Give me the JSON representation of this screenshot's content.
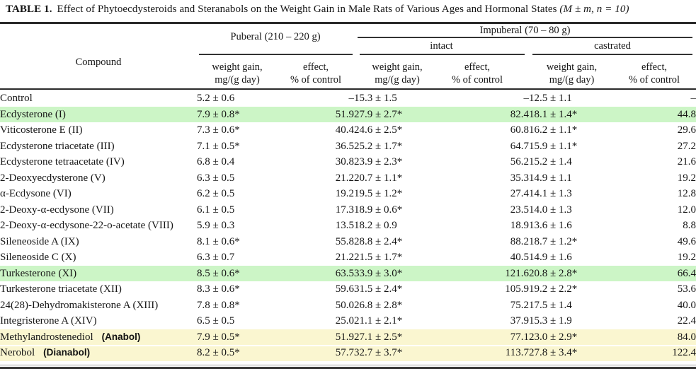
{
  "title": {
    "label": "TABLE 1.",
    "text": "Effect of Phytoecdysteroids and Steranabols on the Weight Gain in Male Rats of Various Ages and Hormonal States",
    "stats": "(M ± m, n = 10)"
  },
  "header": {
    "compound": "Compound",
    "puberal": "Puberal (210 – 220 g)",
    "impuberal": "Impuberal (70 – 80 g)",
    "intact": "intact",
    "castrated": "castrated",
    "weight_line1": "weight gain,",
    "weight_line2": "mg/(g day)",
    "effect_line1": "effect,",
    "effect_line2": "% of control"
  },
  "colors": {
    "highlight_green": "#ccf5c6",
    "highlight_yellow": "#faf6d0",
    "rule": "#2a2a2a"
  },
  "rows": [
    {
      "compound": "Control",
      "annotation": null,
      "highlight": null,
      "values": [
        "5.2 ± 0.6",
        "–",
        "15.3 ± 1.5",
        "–",
        "12.5 ± 1.1",
        "–"
      ]
    },
    {
      "compound": "Ecdysterone (I)",
      "annotation": null,
      "highlight": "green",
      "values": [
        "7.9 ± 0.8*",
        "51.9",
        "27.9 ± 2.7*",
        "82.4",
        "18.1 ± 1.4*",
        "44.8"
      ]
    },
    {
      "compound": "Viticosterone E (II)",
      "annotation": null,
      "highlight": null,
      "values": [
        "7.3 ± 0.6*",
        "40.4",
        "24.6 ± 2.5*",
        "60.8",
        "16.2 ± 1.1*",
        "29.6"
      ]
    },
    {
      "compound": "Ecdysterone triacetate (III)",
      "annotation": null,
      "highlight": null,
      "values": [
        "7.1 ± 0.5*",
        "36.5",
        "25.2 ± 1.7*",
        "64.7",
        "15.9 ± 1.1*",
        "27.2"
      ]
    },
    {
      "compound": "Ecdysterone tetraacetate (IV)",
      "annotation": null,
      "highlight": null,
      "values": [
        "6.8 ± 0.4",
        "30.8",
        "23.9 ± 2.3*",
        "56.2",
        "15.2 ± 1.4",
        "21.6"
      ]
    },
    {
      "compound": "2-Deoxyecdysterone (V)",
      "annotation": null,
      "highlight": null,
      "values": [
        "6.3 ± 0.5",
        "21.2",
        "20.7 ± 1.1*",
        "35.3",
        "14.9 ± 1.1",
        "19.2"
      ]
    },
    {
      "compound": "α-Ecdysone (VI)",
      "annotation": null,
      "highlight": null,
      "values": [
        "6.2 ± 0.5",
        "19.2",
        "19.5 ± 1.2*",
        "27.4",
        "14.1 ± 1.3",
        "12.8"
      ]
    },
    {
      "compound": "2-Deoxy-α-ecdysone (VII)",
      "annotation": null,
      "highlight": null,
      "values": [
        "6.1 ± 0.5",
        "17.3",
        "18.9 ± 0.6*",
        "23.5",
        "14.0 ± 1.3",
        "12.0"
      ]
    },
    {
      "compound": "2-Deoxy-α-ecdysone-22-o-acetate (VIII)",
      "annotation": null,
      "highlight": null,
      "values": [
        "5.9 ± 0.3",
        "13.5",
        "18.2 ± 0.9",
        "18.9",
        "13.6 ± 1.6",
        "8.8"
      ]
    },
    {
      "compound": "Sileneoside A (IX)",
      "annotation": null,
      "highlight": null,
      "values": [
        "8.1 ± 0.6*",
        "55.8",
        "28.8 ± 2.4*",
        "88.2",
        "18.7 ± 1.2*",
        "49.6"
      ]
    },
    {
      "compound": "Sileneoside C (X)",
      "annotation": null,
      "highlight": null,
      "values": [
        "6.3 ± 0.7",
        "21.2",
        "21.5 ± 1.7*",
        "40.5",
        "14.9 ± 1.6",
        "19.2"
      ]
    },
    {
      "compound": "Turkesterone (XI)",
      "annotation": null,
      "highlight": "green",
      "values": [
        "8.5 ± 0.6*",
        "63.5",
        "33.9 ± 3.0*",
        "121.6",
        "20.8 ± 2.8*",
        "66.4"
      ]
    },
    {
      "compound": "Turkesterone triacetate (XII)",
      "annotation": null,
      "highlight": null,
      "values": [
        "8.3 ± 0.6*",
        "59.6",
        "31.5 ± 2.4*",
        "105.9",
        "19.2 ± 2.2*",
        "53.6"
      ]
    },
    {
      "compound": "24(28)-Dehydromakisterone A (XIII)",
      "annotation": null,
      "highlight": null,
      "values": [
        "7.8 ± 0.8*",
        "50.0",
        "26.8 ± 2.8*",
        "75.2",
        "17.5 ± 1.4",
        "40.0"
      ]
    },
    {
      "compound": "Integristerone A (XIV)",
      "annotation": null,
      "highlight": null,
      "values": [
        "6.5 ± 0.5",
        "25.0",
        "21.1 ± 2.1*",
        "37.9",
        "15.3 ± 1.9",
        "22.4"
      ]
    },
    {
      "compound": "Methylandrostenediol",
      "annotation": "(Anabol)",
      "highlight": "yellow",
      "values": [
        "7.9 ± 0.5*",
        "51.9",
        "27.1 ± 2.5*",
        "77.1",
        "23.0 ± 2.9*",
        "84.0"
      ]
    },
    {
      "compound": "Nerobol",
      "annotation": "(Dianabol)",
      "highlight": "yellow",
      "values": [
        "8.2 ± 0.5*",
        "57.7",
        "32.7 ± 3.7*",
        "113.7",
        "27.8 ± 3.4*",
        "122.4"
      ]
    }
  ]
}
